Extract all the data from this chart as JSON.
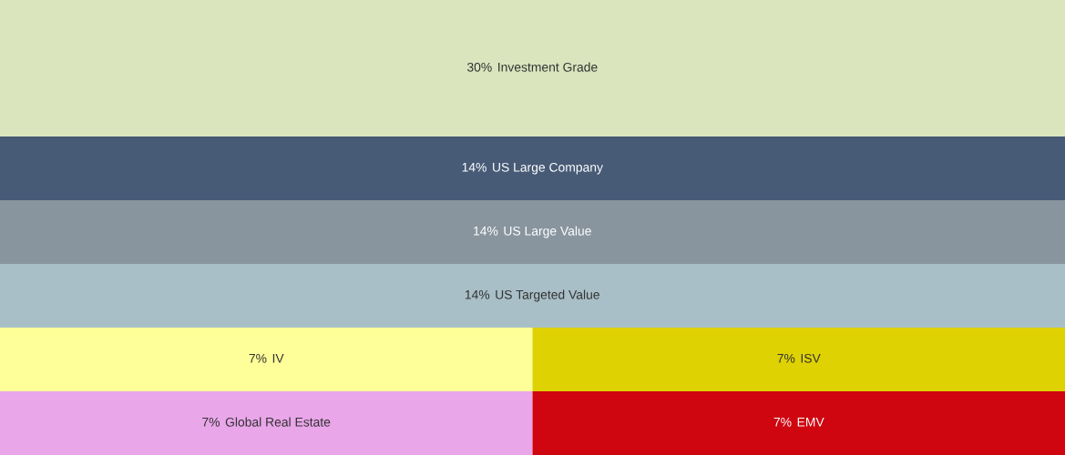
{
  "chart_data": {
    "type": "other",
    "categories": [
      "Investment Grade",
      "US Large Company",
      "US Large Value",
      "US Targeted Value",
      "IV",
      "ISV",
      "Global Real Estate",
      "EMV"
    ],
    "values": [
      30,
      14,
      14,
      14,
      7,
      7,
      7,
      7
    ],
    "value_labels": [
      "30%",
      "14%",
      "14%",
      "14%",
      "7%",
      "7%",
      "7%",
      "7%"
    ],
    "colors": [
      "#dae5bd",
      "#475a76",
      "#89959e",
      "#a9bfc7",
      "#ffff99",
      "#dfd203",
      "#e9a6e9",
      "#cf0610"
    ]
  }
}
